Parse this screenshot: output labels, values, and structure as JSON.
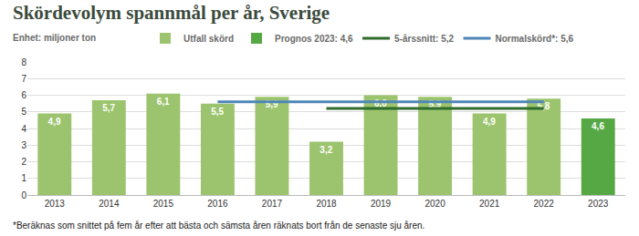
{
  "chart_data": {
    "type": "bar",
    "title": "Skördevolym spannmål per år, Sverige",
    "subtitle": "Enhet: miljoner ton",
    "categories": [
      "2013",
      "2014",
      "2015",
      "2016",
      "2017",
      "2018",
      "2019",
      "2020",
      "2021",
      "2022",
      "2023"
    ],
    "series": [
      {
        "name": "Utfall skörd",
        "type": "bar",
        "color": "#9cc46e",
        "values": [
          4.9,
          5.7,
          6.1,
          5.5,
          5.9,
          3.2,
          6.0,
          5.9,
          4.9,
          5.8,
          null
        ],
        "value_labels": [
          "4,9",
          "5,7",
          "6,1",
          "5,5",
          "5,9",
          "3,2",
          "6,0",
          "5,9",
          "4,9",
          "5,8",
          null
        ]
      },
      {
        "name": "Prognos 2023: 4,6",
        "type": "bar",
        "color": "#56a845",
        "values": [
          null,
          null,
          null,
          null,
          null,
          null,
          null,
          null,
          null,
          null,
          4.6
        ],
        "value_labels": [
          null,
          null,
          null,
          null,
          null,
          null,
          null,
          null,
          null,
          null,
          "4,6"
        ]
      },
      {
        "name": "5-årssnitt: 5,2",
        "type": "line",
        "color": "#2f6b2a",
        "values": [
          null,
          null,
          null,
          null,
          null,
          5.2,
          5.2,
          5.2,
          5.2,
          5.2,
          null
        ]
      },
      {
        "name": "Normalskörd*: 5,6",
        "type": "line",
        "color": "#4f86b8",
        "values": [
          null,
          null,
          null,
          5.6,
          5.6,
          5.6,
          5.6,
          5.6,
          5.6,
          5.6,
          null
        ]
      }
    ],
    "ylim": [
      0,
      8
    ],
    "yticks": [
      0,
      1,
      2,
      3,
      4,
      5,
      6,
      7,
      8
    ],
    "grid": true,
    "legend": "top left",
    "data_labels": true,
    "annotations": [
      "*Beräknas som snittet på fem år efter att bästa och sämsta åren räknats bort från de senaste sju åren."
    ]
  }
}
